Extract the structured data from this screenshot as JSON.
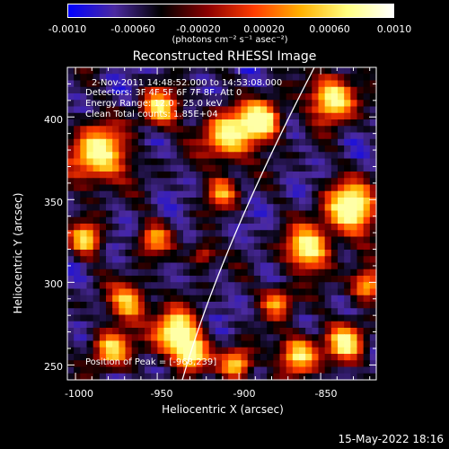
{
  "colorbar": {
    "tick_labels": [
      "-0.0010",
      "-0.00060",
      "-0.00020",
      "0.00020",
      "0.00060",
      "0.0010"
    ],
    "units_label": "(photons cm⁻² s⁻¹ asec⁻²)"
  },
  "title": "Reconstructed RHESSI Image",
  "info": {
    "time_range": "2-Nov-2011 14:48:52.000 to 14:53:08.000",
    "detectors": "Detectors: 3F 4F 5F 6F 7F 8F, Att 0",
    "energy": "Energy Range: 12.0 - 25.0 keV",
    "clean": "Clean     Total counts: 1.85E+04",
    "peak": "Position of Peak = [-968,239]"
  },
  "axes": {
    "xlabel": "Heliocentric X (arcsec)",
    "ylabel": "Heliocentric Y (arcsec)",
    "xticks": [
      "-1000",
      "-950",
      "-900",
      "-850"
    ],
    "yticks": [
      "250",
      "300",
      "350",
      "400"
    ],
    "xlim": [
      -1005,
      -816
    ],
    "ylim": [
      241,
      430
    ]
  },
  "footer": "15-May-2022 18:16",
  "colors": {
    "background": "#000000",
    "limb": "#ffffff",
    "colormap": [
      "#0000ff",
      "#4b2aa0",
      "#000000",
      "#8b0000",
      "#ff3c00",
      "#ffb000",
      "#ffff80",
      "#ffffff"
    ]
  }
}
